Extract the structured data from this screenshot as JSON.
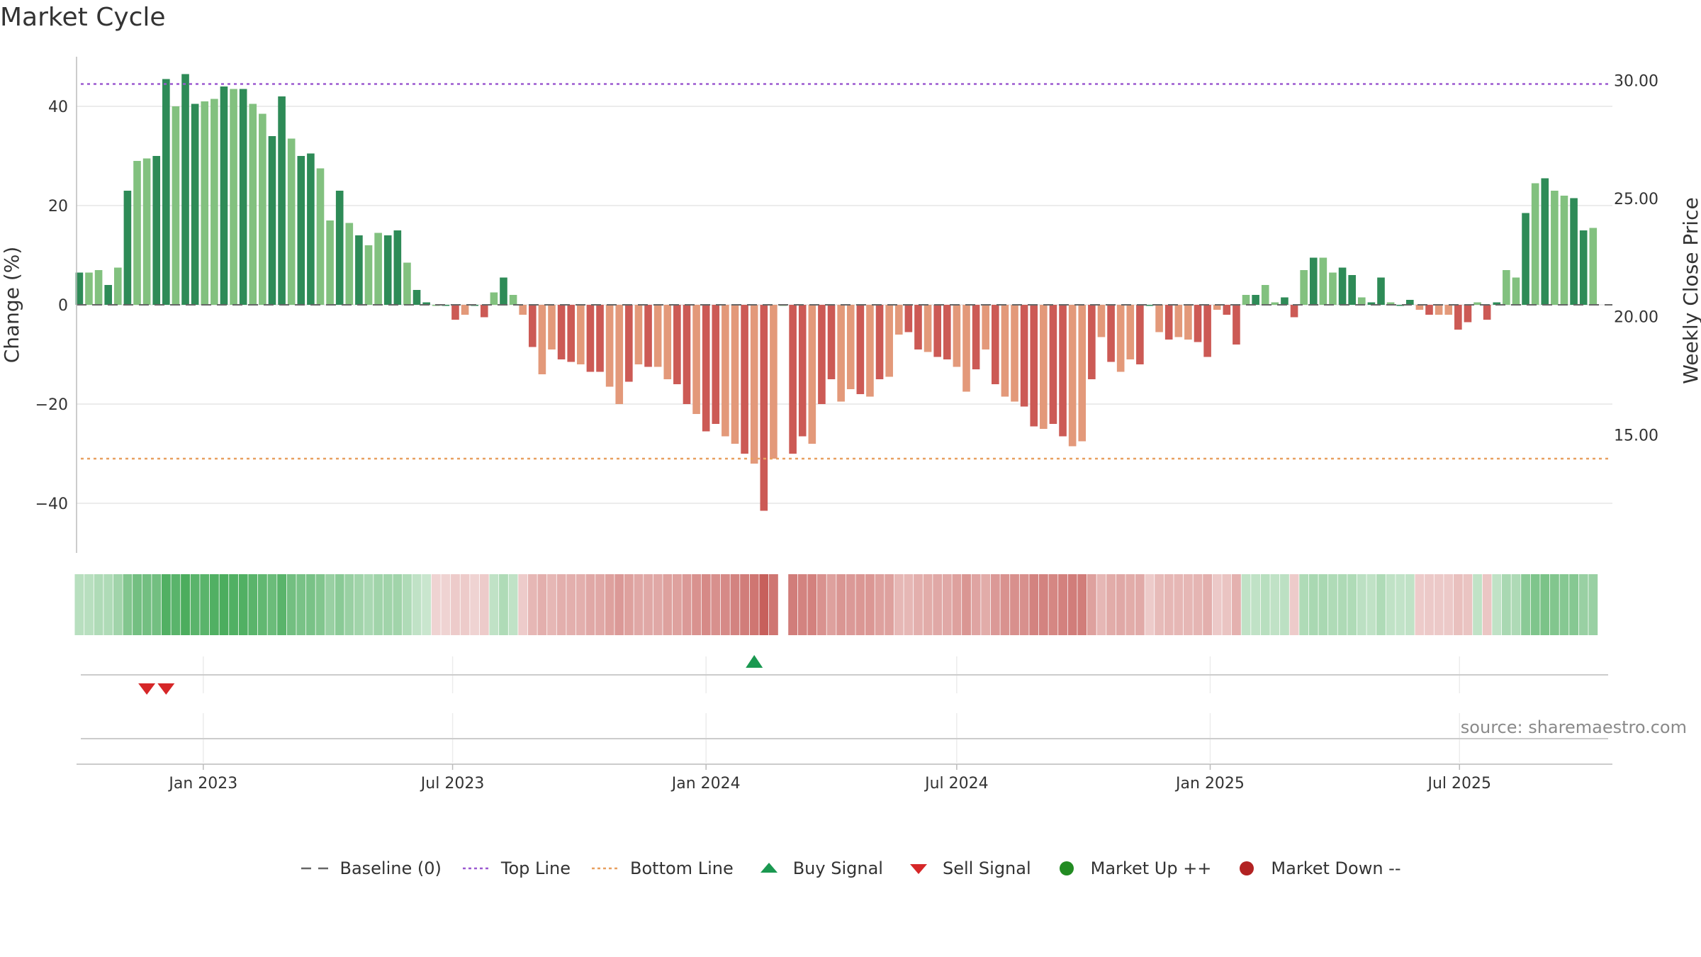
{
  "title": "Market Cycle",
  "source_note": "source: sharemaestro.com",
  "colors": {
    "up_strong": "#2e8b57",
    "up_light": "#82c17f",
    "down_strong": "#cc5a55",
    "down_light": "#e3997a",
    "top_line": "#9b59d0",
    "bottom_line": "#e8a060",
    "buy": "#1a9850",
    "sell": "#d62728",
    "market_up": "#228b22",
    "market_down": "#b22222",
    "baseline": "#666666"
  },
  "legend": [
    {
      "label": "Baseline (0)",
      "marker": "dash"
    },
    {
      "label": "Top Line",
      "marker": "dot-purple"
    },
    {
      "label": "Bottom Line",
      "marker": "dot-orange"
    },
    {
      "label": "Buy Signal",
      "marker": "triangle-up"
    },
    {
      "label": "Sell Signal",
      "marker": "triangle-down"
    },
    {
      "label": "Market Up ++",
      "marker": "circle-green"
    },
    {
      "label": "Market Down --",
      "marker": "circle-red"
    }
  ],
  "chart_data": {
    "type": "bar",
    "title": "Market Cycle",
    "ylabel": "Change (%)",
    "y2label": "Weekly Close Price",
    "ylim": [
      -50,
      50
    ],
    "yticks": [
      40,
      20,
      0,
      -20,
      -40
    ],
    "ytick_labels": [
      "40",
      "20",
      "0",
      "−20",
      "−40"
    ],
    "y2lim": [
      10,
      31
    ],
    "y2ticks": [
      30,
      25,
      20,
      15
    ],
    "y2tick_labels": [
      "30.00",
      "25.00",
      "20.00",
      "15.00"
    ],
    "top_line": 44.5,
    "bottom_line": -31,
    "x_start": "2022-10-01",
    "x_end": "2025-10-20",
    "xticks": [
      "2023-01-01",
      "2023-07-01",
      "2024-01-01",
      "2024-07-01",
      "2025-01-01",
      "2025-07-01"
    ],
    "xtick_labels": [
      "Jan 2023",
      "Jul 2023",
      "Jan 2024",
      "Jul 2024",
      "Jan 2025",
      "Jul 2025"
    ],
    "weekly_start": "2022-10-03",
    "values": [
      6.5,
      6.5,
      7,
      4,
      7.5,
      23,
      29,
      29.5,
      30,
      45.5,
      40,
      46.5,
      40.5,
      41,
      41.5,
      44,
      43.5,
      43.5,
      40.5,
      38.5,
      34,
      42,
      33.5,
      30,
      30.5,
      27.5,
      17,
      23,
      16.5,
      14,
      12,
      14.5,
      14,
      15,
      8.5,
      3,
      0.5,
      0,
      0,
      -3,
      -2,
      0,
      -2.5,
      2.5,
      5.5,
      2,
      -2,
      -8.5,
      -14,
      -9,
      -11,
      -11.5,
      -12,
      -13.5,
      -13.5,
      -16.5,
      -20,
      -15.5,
      -12,
      -12.5,
      -12.5,
      -15,
      -16,
      -20,
      -22,
      -25.5,
      -24,
      -26.5,
      -28,
      -30,
      -32,
      -41.5,
      -31,
      0,
      -30,
      -26.5,
      -28,
      -20,
      -15,
      -19.5,
      -17,
      -18,
      -18.5,
      -15,
      -14.5,
      -6,
      -5.5,
      -9,
      -9.5,
      -10.5,
      -11,
      -12.5,
      -17.5,
      -13,
      -9,
      -16,
      -18.5,
      -19.5,
      -20.5,
      -24.5,
      -25,
      -24,
      -26.5,
      -28.5,
      -27.5,
      -15,
      -6.5,
      -11.5,
      -13.5,
      -11,
      -12,
      0,
      -5.5,
      -7,
      -6.5,
      -7,
      -7.5,
      -10.5,
      -1,
      -2,
      -8,
      2,
      2,
      4,
      0.5,
      1.5,
      -2.5,
      7,
      9.5,
      9.5,
      6.5,
      7.5,
      6,
      1.5,
      0.5,
      5.5,
      0.5,
      0,
      1,
      -1,
      -2,
      -2,
      -2,
      -5,
      -3.5,
      0.5,
      -3,
      0.5,
      7,
      5.5,
      18.5,
      24.5,
      25.5,
      23,
      22,
      21.5,
      15,
      15.5
    ],
    "bar_shade": "alternating strong/light within up and down runs",
    "regime_strip": [
      0.25,
      0.25,
      0.3,
      0.3,
      0.4,
      0.6,
      0.7,
      0.7,
      0.7,
      0.9,
      0.85,
      0.95,
      0.85,
      0.85,
      0.9,
      0.95,
      0.9,
      0.9,
      0.85,
      0.8,
      0.75,
      0.85,
      0.7,
      0.65,
      0.65,
      0.6,
      0.45,
      0.55,
      0.45,
      0.4,
      0.35,
      0.4,
      0.4,
      0.4,
      0.3,
      0.2,
      0.15,
      -0.15,
      -0.15,
      -0.2,
      -0.2,
      -0.15,
      -0.2,
      0.2,
      0.3,
      0.2,
      -0.2,
      -0.35,
      -0.4,
      -0.35,
      -0.4,
      -0.4,
      -0.4,
      -0.45,
      -0.45,
      -0.5,
      -0.55,
      -0.5,
      -0.45,
      -0.45,
      -0.45,
      -0.5,
      -0.5,
      -0.55,
      -0.6,
      -0.65,
      -0.62,
      -0.66,
      -0.7,
      -0.75,
      -0.8,
      -0.95,
      -0.8,
      0,
      -0.75,
      -0.7,
      -0.72,
      -0.6,
      -0.5,
      -0.58,
      -0.55,
      -0.56,
      -0.57,
      -0.5,
      -0.5,
      -0.35,
      -0.35,
      -0.4,
      -0.42,
      -0.45,
      -0.45,
      -0.5,
      -0.58,
      -0.48,
      -0.42,
      -0.55,
      -0.6,
      -0.62,
      -0.62,
      -0.7,
      -0.7,
      -0.68,
      -0.72,
      -0.75,
      -0.74,
      -0.5,
      -0.35,
      -0.42,
      -0.45,
      -0.42,
      -0.43,
      -0.2,
      -0.32,
      -0.35,
      -0.34,
      -0.35,
      -0.36,
      -0.4,
      -0.22,
      -0.25,
      -0.38,
      0.2,
      0.2,
      0.25,
      0.2,
      0.22,
      -0.2,
      0.3,
      0.35,
      0.35,
      0.3,
      0.32,
      0.3,
      0.22,
      0.2,
      0.3,
      0.2,
      0.18,
      0.2,
      -0.2,
      -0.22,
      -0.22,
      -0.22,
      -0.28,
      -0.25,
      0.2,
      -0.24,
      0.2,
      0.35,
      0.32,
      0.55,
      0.62,
      0.64,
      0.6,
      0.58,
      0.58,
      0.45,
      0.45
    ],
    "buy_signals": [
      "2024-02-05"
    ],
    "sell_signals": [
      "2022-11-21",
      "2022-12-05"
    ],
    "market_up_points": [],
    "market_down_points": [],
    "grid": true
  }
}
